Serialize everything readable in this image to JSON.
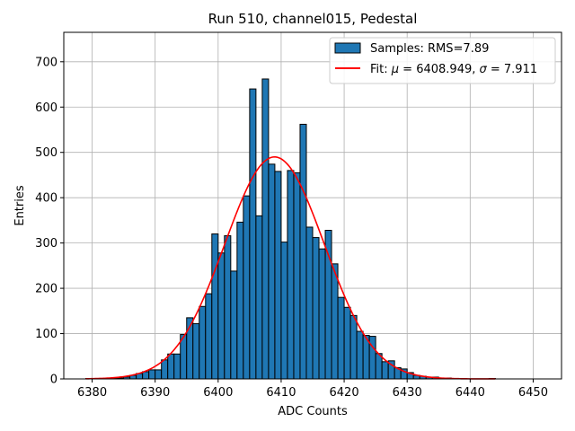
{
  "chart_data": {
    "type": "bar",
    "title": "Run 510, channel015, Pedestal",
    "xlabel": "ADC Counts",
    "ylabel": "Entries",
    "xlim": [
      6375.5,
      6454.5
    ],
    "ylim": [
      0,
      765
    ],
    "grid": true,
    "legend_position": "top-right",
    "x_ticks": [
      6380,
      6390,
      6400,
      6410,
      6420,
      6430,
      6440,
      6450
    ],
    "y_ticks": [
      0,
      100,
      200,
      300,
      400,
      500,
      600,
      700
    ],
    "histogram": {
      "name": "Samples: RMS=7.89",
      "color": "#1f77b4",
      "edge_color": "#000000",
      "bin_width": 1,
      "bin_starts": [
        6379,
        6380,
        6381,
        6382,
        6383,
        6384,
        6385,
        6386,
        6387,
        6388,
        6389,
        6390,
        6391,
        6392,
        6393,
        6394,
        6395,
        6396,
        6397,
        6398,
        6399,
        6400,
        6401,
        6402,
        6403,
        6404,
        6405,
        6406,
        6407,
        6408,
        6409,
        6410,
        6411,
        6412,
        6413,
        6414,
        6415,
        6416,
        6417,
        6418,
        6419,
        6420,
        6421,
        6422,
        6423,
        6424,
        6425,
        6426,
        6427,
        6428,
        6429,
        6430,
        6431,
        6432,
        6433,
        6434,
        6435,
        6436,
        6437,
        6438,
        6439,
        6440,
        6441,
        6442,
        6443
      ],
      "counts": [
        1,
        0,
        0,
        0,
        1,
        2,
        4,
        8,
        12,
        16,
        20,
        20,
        42,
        55,
        55,
        98,
        135,
        122,
        160,
        188,
        320,
        278,
        316,
        238,
        346,
        404,
        640,
        360,
        662,
        474,
        458,
        302,
        460,
        455,
        562,
        335,
        312,
        287,
        328,
        254,
        180,
        158,
        140,
        105,
        96,
        94,
        56,
        38,
        40,
        25,
        22,
        14,
        8,
        6,
        4,
        4,
        2,
        2,
        1,
        1,
        0,
        0,
        0,
        0,
        1
      ]
    },
    "fit": {
      "name_prefix": "Fit: ",
      "name_mu": "μ",
      "name_mid": " = 6408.949, ",
      "name_sigma": "σ",
      "name_suffix": " = 7.911",
      "color": "#ff0000",
      "mu": 6408.949,
      "sigma": 7.911,
      "amplitude": 490,
      "x_range": [
        6379,
        6444
      ]
    }
  }
}
